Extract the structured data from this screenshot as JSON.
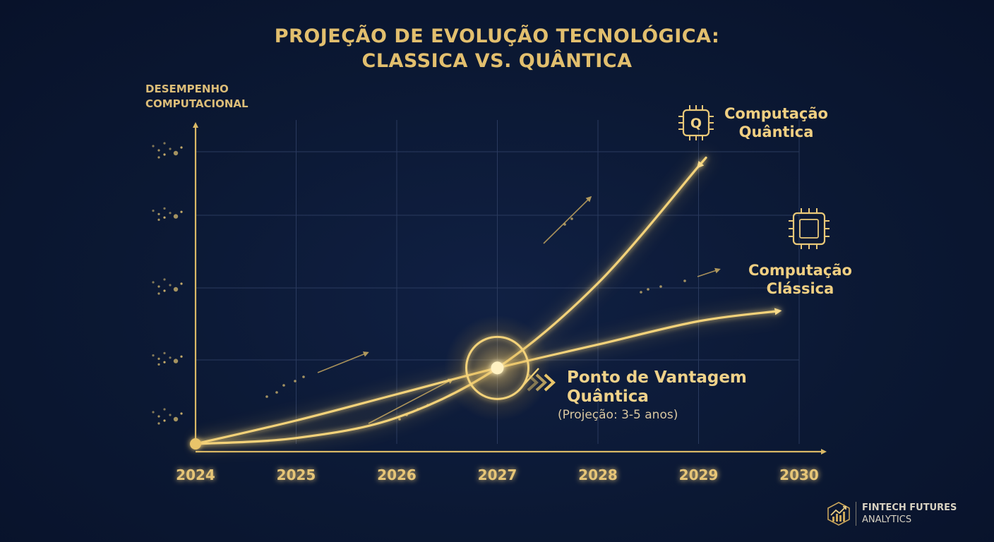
{
  "title": {
    "line1": "PROJEÇÃO DE EVOLUÇÃO TECNOLÓGICA:",
    "line2": "CLASSICA VS. QUÂNTICA"
  },
  "colors": {
    "background": "#0b1833",
    "accent": "#f3d27a",
    "grid": "#2a3a5e"
  },
  "chart_data": {
    "type": "line",
    "title": "PROJEÇÃO DE EVOLUÇÃO TECNOLÓGICA: CLASSICA VS. QUÂNTICA",
    "ylabel_lines": [
      "DESEMPENHO",
      "COMPUTACIONAL"
    ],
    "xlabel": "",
    "categories": [
      "2024",
      "2025",
      "2026",
      "2027",
      "2028",
      "2029",
      "2030"
    ],
    "grid": true,
    "y_ticks_labeled": false,
    "series": [
      {
        "name_lines": [
          "Computação",
          "Clássica"
        ],
        "icon": "chip-icon",
        "x": [
          2024,
          2025,
          2026,
          2027,
          2028,
          2029
        ],
        "y": [
          0.0,
          0.8,
          1.7,
          2.6,
          3.4,
          4.2
        ],
        "end_x": 2029.8,
        "end_y": 4.55
      },
      {
        "name_lines": [
          "Computação",
          "Quântica"
        ],
        "icon": "quantum-chip-icon",
        "icon_text": "Q",
        "x": [
          2024,
          2025,
          2026,
          2027,
          2028,
          2029
        ],
        "y": [
          0.0,
          0.2,
          0.9,
          2.6,
          5.5,
          9.5
        ],
        "end_x": 2029.0,
        "end_y": 9.5
      }
    ],
    "annotation": {
      "x": 2027,
      "y": 2.6,
      "label_lines": [
        "Ponto de Vantagem",
        "Quântica"
      ],
      "sublabel": "(Projeção: 3-5 anos)"
    },
    "ylim": [
      0,
      10
    ],
    "xlim": [
      2024,
      2030
    ]
  },
  "brand": {
    "line1": "FINTECH FUTURES",
    "line2": "ANALYTICS",
    "icon": "rising-chart-logo-icon"
  }
}
